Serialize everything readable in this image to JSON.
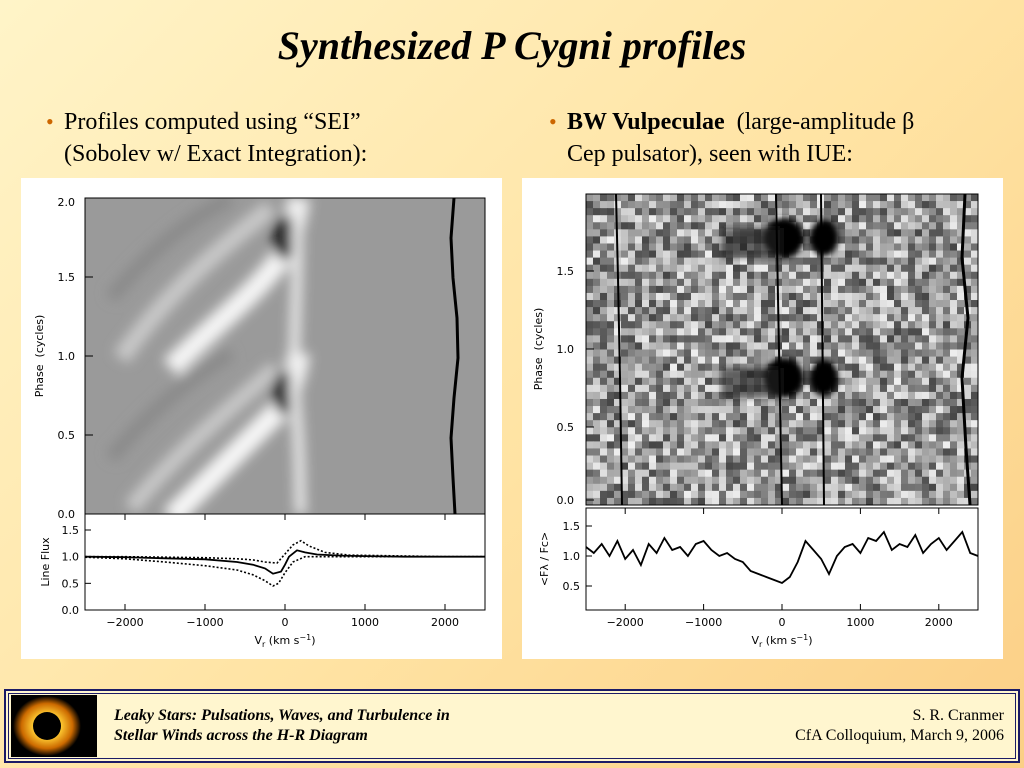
{
  "slide": {
    "title": "Synthesized P Cygni profiles",
    "bullet_left": {
      "line1": "Profiles computed using “SEI”",
      "line2": "(Sobolev w/ Exact Integration):"
    },
    "bullet_right": {
      "bold": "BW Vulpeculae",
      "line1_rest": "(large-amplitude β",
      "line2": "Cep pulsator), seen with IUE:"
    },
    "footer": {
      "left_line1": "Leaky Stars:  Pulsations, Waves, and Turbulence in",
      "left_line2": "Stellar Winds across the H-R Diagram",
      "right_line1": "S. R. Cranmer",
      "right_line2": "CfA Colloquium,  March 9, 2006"
    }
  },
  "chart_data": [
    {
      "type": "heatmap",
      "panel": "left-top",
      "ylabel": "Phase  (cycles)",
      "ytick_labels": [
        "0.0",
        "0.5",
        "1.0",
        "1.5",
        "2.0"
      ],
      "ylim": [
        0,
        2.0
      ],
      "xlim": [
        -2500,
        2500
      ]
    },
    {
      "type": "line",
      "panel": "left-bottom",
      "ylabel": "Line Flux",
      "xlabel_parts": [
        "V",
        "r",
        " (km s",
        "−1",
        ")"
      ],
      "xtick_labels": [
        "−2000",
        "−1000",
        "0",
        "1000",
        "2000"
      ],
      "ytick_labels": [
        "0.0",
        "0.5",
        "1.0",
        "1.5"
      ],
      "xlim": [
        -2500,
        2500
      ],
      "ylim": [
        0,
        1.8
      ],
      "series": [
        {
          "style": "solid",
          "x": [
            -2500,
            -2000,
            -1500,
            -1000,
            -600,
            -400,
            -250,
            -150,
            -50,
            0,
            50,
            150,
            250,
            400,
            700,
            1000,
            1500,
            2000,
            2500
          ],
          "y": [
            1.0,
            0.99,
            0.97,
            0.95,
            0.9,
            0.85,
            0.78,
            0.68,
            0.72,
            0.85,
            1.0,
            1.12,
            1.08,
            1.04,
            1.02,
            1.01,
            1.0,
            1.0,
            1.0
          ]
        },
        {
          "style": "dotted",
          "x": [
            -2500,
            -2000,
            -1500,
            -1000,
            -600,
            -400,
            -250,
            -100,
            0,
            100,
            200,
            300,
            500,
            800,
            1200,
            1600,
            2000,
            2500
          ],
          "y": [
            1.0,
            1.0,
            0.99,
            0.98,
            0.96,
            0.94,
            0.9,
            0.88,
            1.05,
            1.22,
            1.3,
            1.2,
            1.08,
            1.03,
            1.02,
            1.01,
            1.0,
            1.0
          ]
        },
        {
          "style": "dotted",
          "x": [
            -2500,
            -2000,
            -1500,
            -1000,
            -600,
            -400,
            -250,
            -150,
            -80,
            0,
            100,
            250,
            500,
            800,
            1200,
            1600,
            2000,
            2500
          ],
          "y": [
            0.99,
            0.96,
            0.9,
            0.83,
            0.75,
            0.66,
            0.55,
            0.45,
            0.5,
            0.7,
            0.9,
            1.0,
            1.0,
            1.0,
            1.0,
            1.0,
            1.0,
            1.0
          ]
        }
      ]
    },
    {
      "type": "heatmap",
      "panel": "right-top",
      "ylabel": "Phase  (cycles)",
      "ytick_labels": [
        "0.0",
        "0.5",
        "1.0",
        "1.5"
      ],
      "ylim": [
        0,
        1.9
      ],
      "xlim": [
        -2500,
        2500
      ]
    },
    {
      "type": "line",
      "panel": "right-bottom",
      "ylabel": "<Fλ / Fc>",
      "xlabel_parts": [
        "V",
        "r",
        " (km s",
        "−1",
        ")"
      ],
      "xtick_labels": [
        "−2000",
        "−1000",
        "0",
        "1000",
        "2000"
      ],
      "ytick_labels": [
        "0.5",
        "1.0",
        "1.5"
      ],
      "xlim": [
        -2500,
        2500
      ],
      "ylim": [
        0.1,
        1.8
      ],
      "series": [
        {
          "style": "solid",
          "x": [
            -2500,
            -2400,
            -2300,
            -2200,
            -2100,
            -2000,
            -1900,
            -1800,
            -1700,
            -1600,
            -1500,
            -1400,
            -1300,
            -1200,
            -1100,
            -1000,
            -900,
            -800,
            -700,
            -600,
            -500,
            -400,
            -300,
            -200,
            -100,
            0,
            100,
            200,
            300,
            400,
            500,
            600,
            700,
            800,
            900,
            1000,
            1100,
            1200,
            1300,
            1400,
            1500,
            1600,
            1700,
            1800,
            1900,
            2000,
            2100,
            2200,
            2300,
            2400,
            2500
          ],
          "y": [
            1.15,
            1.05,
            1.2,
            1.0,
            1.25,
            0.95,
            1.1,
            0.85,
            1.2,
            1.05,
            1.3,
            1.1,
            1.15,
            1.0,
            1.2,
            1.25,
            1.1,
            1.0,
            1.05,
            0.95,
            0.9,
            0.75,
            0.7,
            0.65,
            0.6,
            0.55,
            0.65,
            0.9,
            1.25,
            1.1,
            0.95,
            0.7,
            1.0,
            1.15,
            1.2,
            1.05,
            1.3,
            1.25,
            1.4,
            1.1,
            1.2,
            1.15,
            1.35,
            1.05,
            1.2,
            1.3,
            1.1,
            1.25,
            1.4,
            1.05,
            1.0
          ]
        }
      ]
    }
  ]
}
